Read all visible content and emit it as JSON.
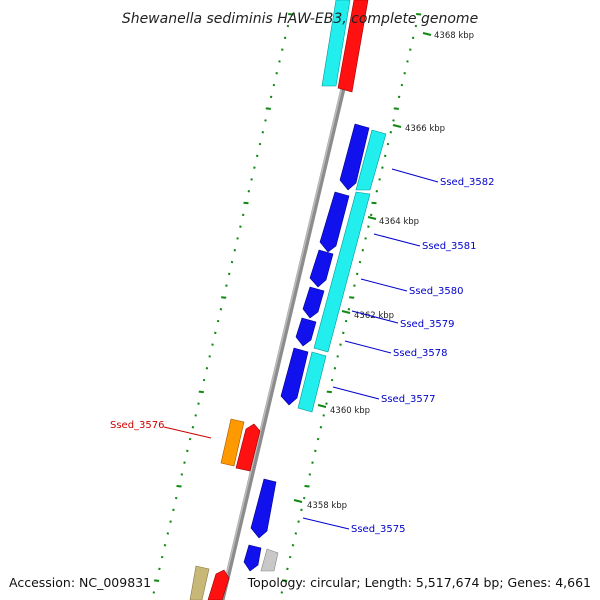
{
  "title": "Shewanella sediminis HAW-EB3, complete genome",
  "footer": {
    "accession": "Accession: NC_009831",
    "topology": "Topology: circular; Length: 5,517,674 bp; Genes: 4,661"
  },
  "kbp_labels": [
    "4368 kbp",
    "4366 kbp",
    "4364 kbp",
    "4362 kbp",
    "4360 kbp",
    "4358 kbp"
  ],
  "genes": [
    {
      "id": "Ssed_3582",
      "color": "#0000cc"
    },
    {
      "id": "Ssed_3581",
      "color": "#0000cc"
    },
    {
      "id": "Ssed_3580",
      "color": "#0000cc"
    },
    {
      "id": "Ssed_3579",
      "color": "#0000cc"
    },
    {
      "id": "Ssed_3578",
      "color": "#0000cc"
    },
    {
      "id": "Ssed_3577",
      "color": "#0000cc"
    },
    {
      "id": "Ssed_3576",
      "color": "#cc0000"
    },
    {
      "id": "Ssed_3575",
      "color": "#0000cc"
    }
  ],
  "colors": {
    "backbone": "#8c8c8c",
    "cds_forward": "#1111ee",
    "cds_reverse": "#ff1111",
    "cds_cyan": "#22eeee",
    "cds_orange": "#ff9900",
    "cds_grey": "#c8c8c8",
    "cds_olive": "#c8b878",
    "tick": "#118811"
  }
}
